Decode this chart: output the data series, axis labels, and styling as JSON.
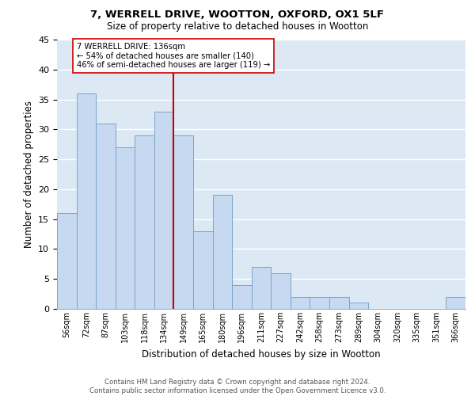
{
  "title": "7, WERRELL DRIVE, WOOTTON, OXFORD, OX1 5LF",
  "subtitle": "Size of property relative to detached houses in Wootton",
  "xlabel": "Distribution of detached houses by size in Wootton",
  "ylabel": "Number of detached properties",
  "bin_labels": [
    "56sqm",
    "72sqm",
    "87sqm",
    "103sqm",
    "118sqm",
    "134sqm",
    "149sqm",
    "165sqm",
    "180sqm",
    "196sqm",
    "211sqm",
    "227sqm",
    "242sqm",
    "258sqm",
    "273sqm",
    "289sqm",
    "304sqm",
    "320sqm",
    "335sqm",
    "351sqm",
    "366sqm"
  ],
  "bar_heights": [
    16,
    36,
    31,
    27,
    29,
    33,
    29,
    13,
    19,
    4,
    7,
    6,
    2,
    2,
    2,
    1,
    0,
    0,
    0,
    0,
    2
  ],
  "bar_color": "#c6d9f0",
  "bar_edge_color": "#7ba4c9",
  "vline_color": "#cc0000",
  "annotation_text": "7 WERRELL DRIVE: 136sqm\n← 54% of detached houses are smaller (140)\n46% of semi-detached houses are larger (119) →",
  "annotation_box_edge": "#cc0000",
  "ylim": [
    0,
    45
  ],
  "yticks": [
    0,
    5,
    10,
    15,
    20,
    25,
    30,
    35,
    40,
    45
  ],
  "footer_text": "Contains HM Land Registry data © Crown copyright and database right 2024.\nContains public sector information licensed under the Open Government Licence v3.0.",
  "grid_color": "#ffffff",
  "bg_color": "#dce9f5",
  "vline_index": 5.5
}
